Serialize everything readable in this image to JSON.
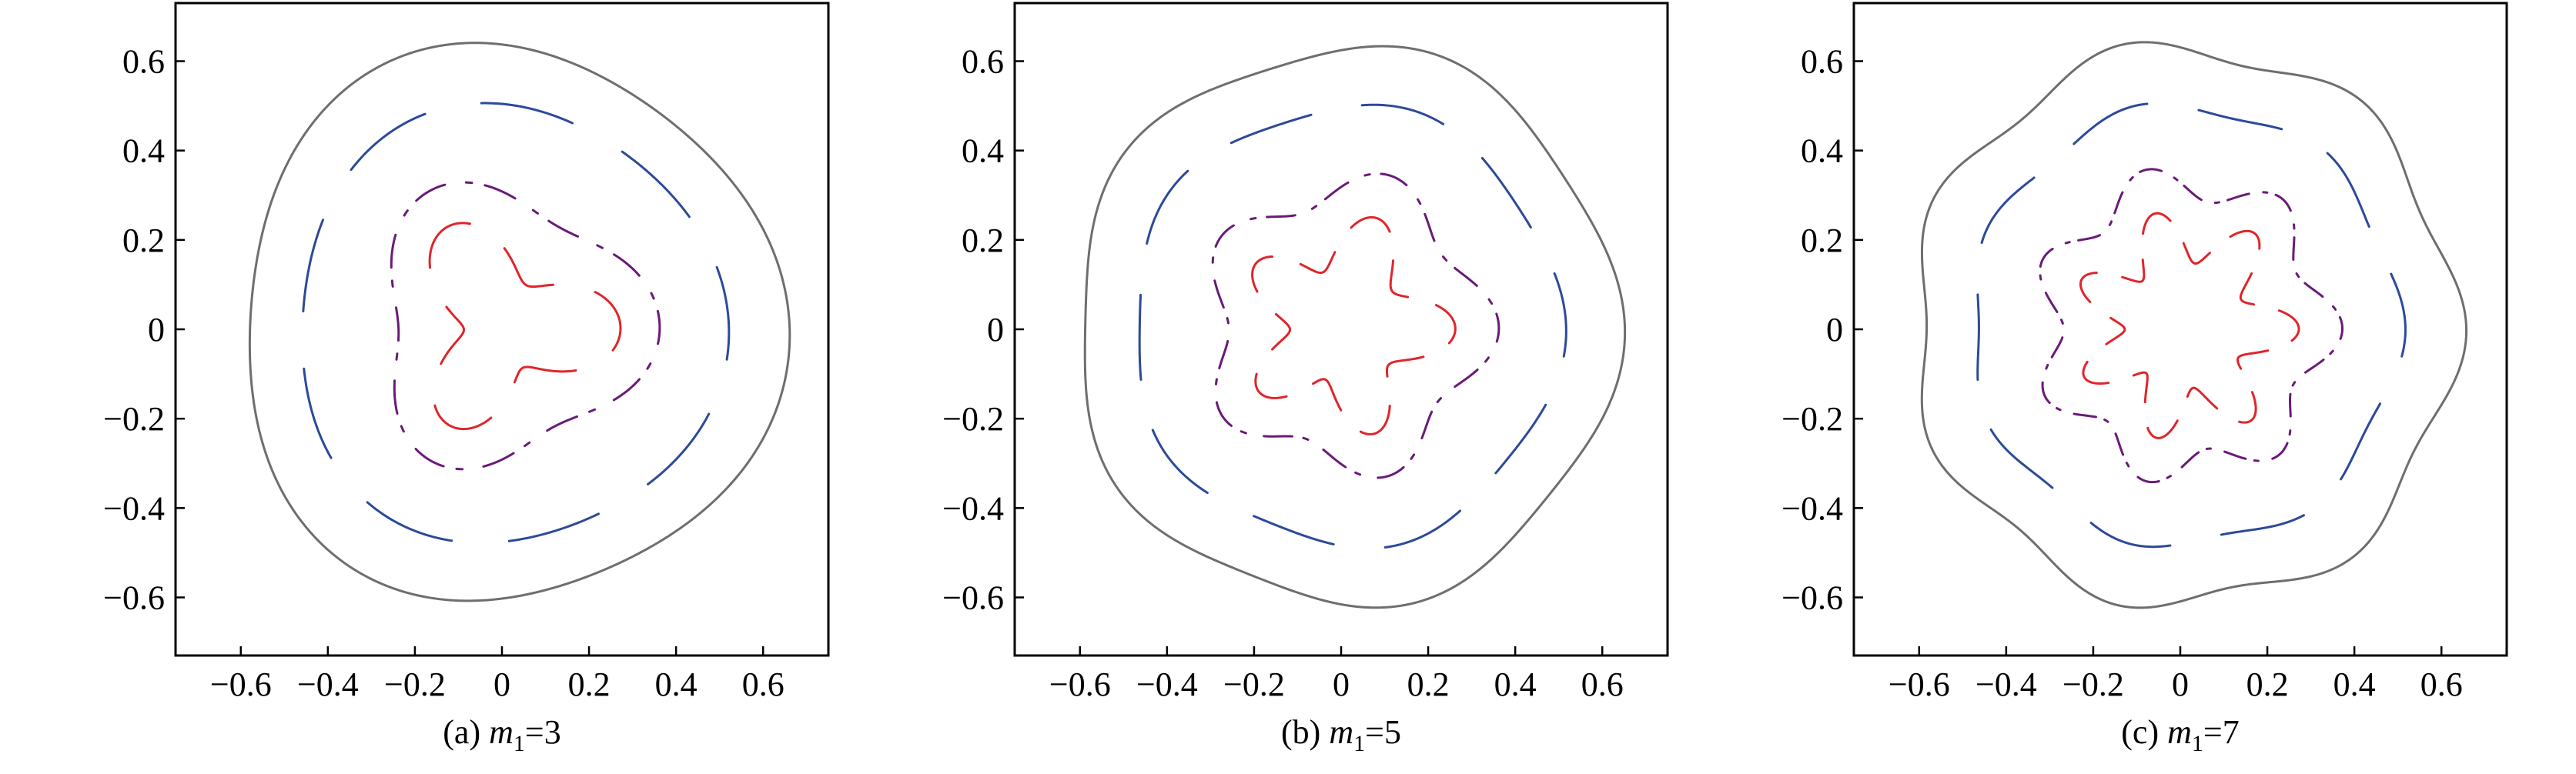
{
  "chart_data": [
    {
      "type": "line",
      "panel": "a",
      "caption": {
        "prefix": "(a) ",
        "var": "m",
        "sub": "1",
        "suffix": "=3"
      },
      "m1": 3,
      "xlim": [
        -0.75,
        0.75
      ],
      "ylim": [
        -0.73,
        0.73
      ],
      "xticks": [
        -0.6,
        -0.4,
        -0.2,
        0,
        0.2,
        0.4,
        0.6
      ],
      "yticks": [
        -0.6,
        -0.4,
        -0.2,
        0,
        0.2,
        0.4,
        0.6
      ],
      "xtick_labels": [
        "−0.6",
        "−0.4",
        "−0.2",
        "0",
        "0.2",
        "0.4",
        "0.6"
      ],
      "ytick_labels": [
        "−0.6",
        "−0.4",
        "−0.2",
        "0",
        "0.2",
        "0.4",
        "0.6"
      ],
      "grid": false,
      "series": [
        {
          "color": "#6e6e6e",
          "style": "solid",
          "base_radius": 0.62,
          "mode": 3,
          "amplitude": 0.03,
          "phase": 0.3,
          "gaps": 0
        },
        {
          "color": "#2c4a9a",
          "style": "dashed",
          "base_radius": 0.49,
          "mode": 3,
          "amplitude": 0.02,
          "phase": 0.3,
          "gaps": 9
        },
        {
          "color": "#6a1a78",
          "style": "dashdot",
          "base_radius": 0.3,
          "mode": 3,
          "amplitude": 0.05,
          "phase": 0.0,
          "gaps": 12
        },
        {
          "color": "#e0252a",
          "style": "dashed",
          "base_radius": 0.18,
          "mode": 3,
          "amplitude": 0.08,
          "phase": 0.0,
          "gaps": 6
        }
      ]
    },
    {
      "type": "line",
      "panel": "b",
      "caption": {
        "prefix": "(b) ",
        "var": "m",
        "sub": "1",
        "suffix": "=5"
      },
      "m1": 5,
      "xlim": [
        -0.75,
        0.75
      ],
      "ylim": [
        -0.73,
        0.73
      ],
      "xticks": [
        -0.6,
        -0.4,
        -0.2,
        0,
        0.2,
        0.4,
        0.6
      ],
      "yticks": [
        -0.6,
        -0.4,
        -0.2,
        0,
        0.2,
        0.4,
        0.6
      ],
      "xtick_labels": [
        "−0.6",
        "−0.4",
        "−0.2",
        "0",
        "0.2",
        "0.4",
        "0.6"
      ],
      "ytick_labels": [
        "−0.6",
        "−0.4",
        "−0.2",
        "0",
        "0.2",
        "0.4",
        "0.6"
      ],
      "grid": false,
      "series": [
        {
          "color": "#6e6e6e",
          "style": "solid",
          "base_radius": 0.62,
          "mode": 5,
          "amplitude": 0.02,
          "phase": 0.2,
          "gaps": 0
        },
        {
          "color": "#2c4a9a",
          "style": "dashed",
          "base_radius": 0.49,
          "mode": 5,
          "amplitude": 0.015,
          "phase": 0.2,
          "gaps": 10
        },
        {
          "color": "#6a1a78",
          "style": "dashdot",
          "base_radius": 0.31,
          "mode": 5,
          "amplitude": 0.04,
          "phase": 0.0,
          "gaps": 15
        },
        {
          "color": "#e0252a",
          "style": "dashed",
          "base_radius": 0.19,
          "mode": 5,
          "amplitude": 0.06,
          "phase": 0.0,
          "gaps": 10
        }
      ]
    },
    {
      "type": "line",
      "panel": "c",
      "caption": {
        "prefix": "(c) ",
        "var": "m",
        "sub": "1",
        "suffix": "=7"
      },
      "m1": 7,
      "xlim": [
        -0.75,
        0.75
      ],
      "ylim": [
        -0.73,
        0.73
      ],
      "xticks": [
        -0.6,
        -0.4,
        -0.2,
        0,
        0.2,
        0.4,
        0.6
      ],
      "yticks": [
        -0.6,
        -0.4,
        -0.2,
        0,
        0.2,
        0.4,
        0.6
      ],
      "xtick_labels": [
        "−0.6",
        "−0.4",
        "−0.2",
        "0",
        "0.2",
        "0.4",
        "0.6"
      ],
      "ytick_labels": [
        "−0.6",
        "−0.4",
        "−0.2",
        "0",
        "0.2",
        "0.4",
        "0.6"
      ],
      "grid": false,
      "series": [
        {
          "color": "#6e6e6e",
          "style": "solid",
          "base_radius": 0.62,
          "mode": 7,
          "amplitude": 0.025,
          "phase": 0.1,
          "gaps": 0
        },
        {
          "color": "#2c4a9a",
          "style": "dashed",
          "base_radius": 0.49,
          "mode": 7,
          "amplitude": 0.015,
          "phase": 0.1,
          "gaps": 10
        },
        {
          "color": "#6a1a78",
          "style": "dashdot",
          "base_radius": 0.32,
          "mode": 7,
          "amplitude": 0.04,
          "phase": 0.0,
          "gaps": 21
        },
        {
          "color": "#e0252a",
          "style": "dashed",
          "base_radius": 0.2,
          "mode": 7,
          "amplitude": 0.06,
          "phase": 0.0,
          "gaps": 14
        }
      ]
    }
  ]
}
